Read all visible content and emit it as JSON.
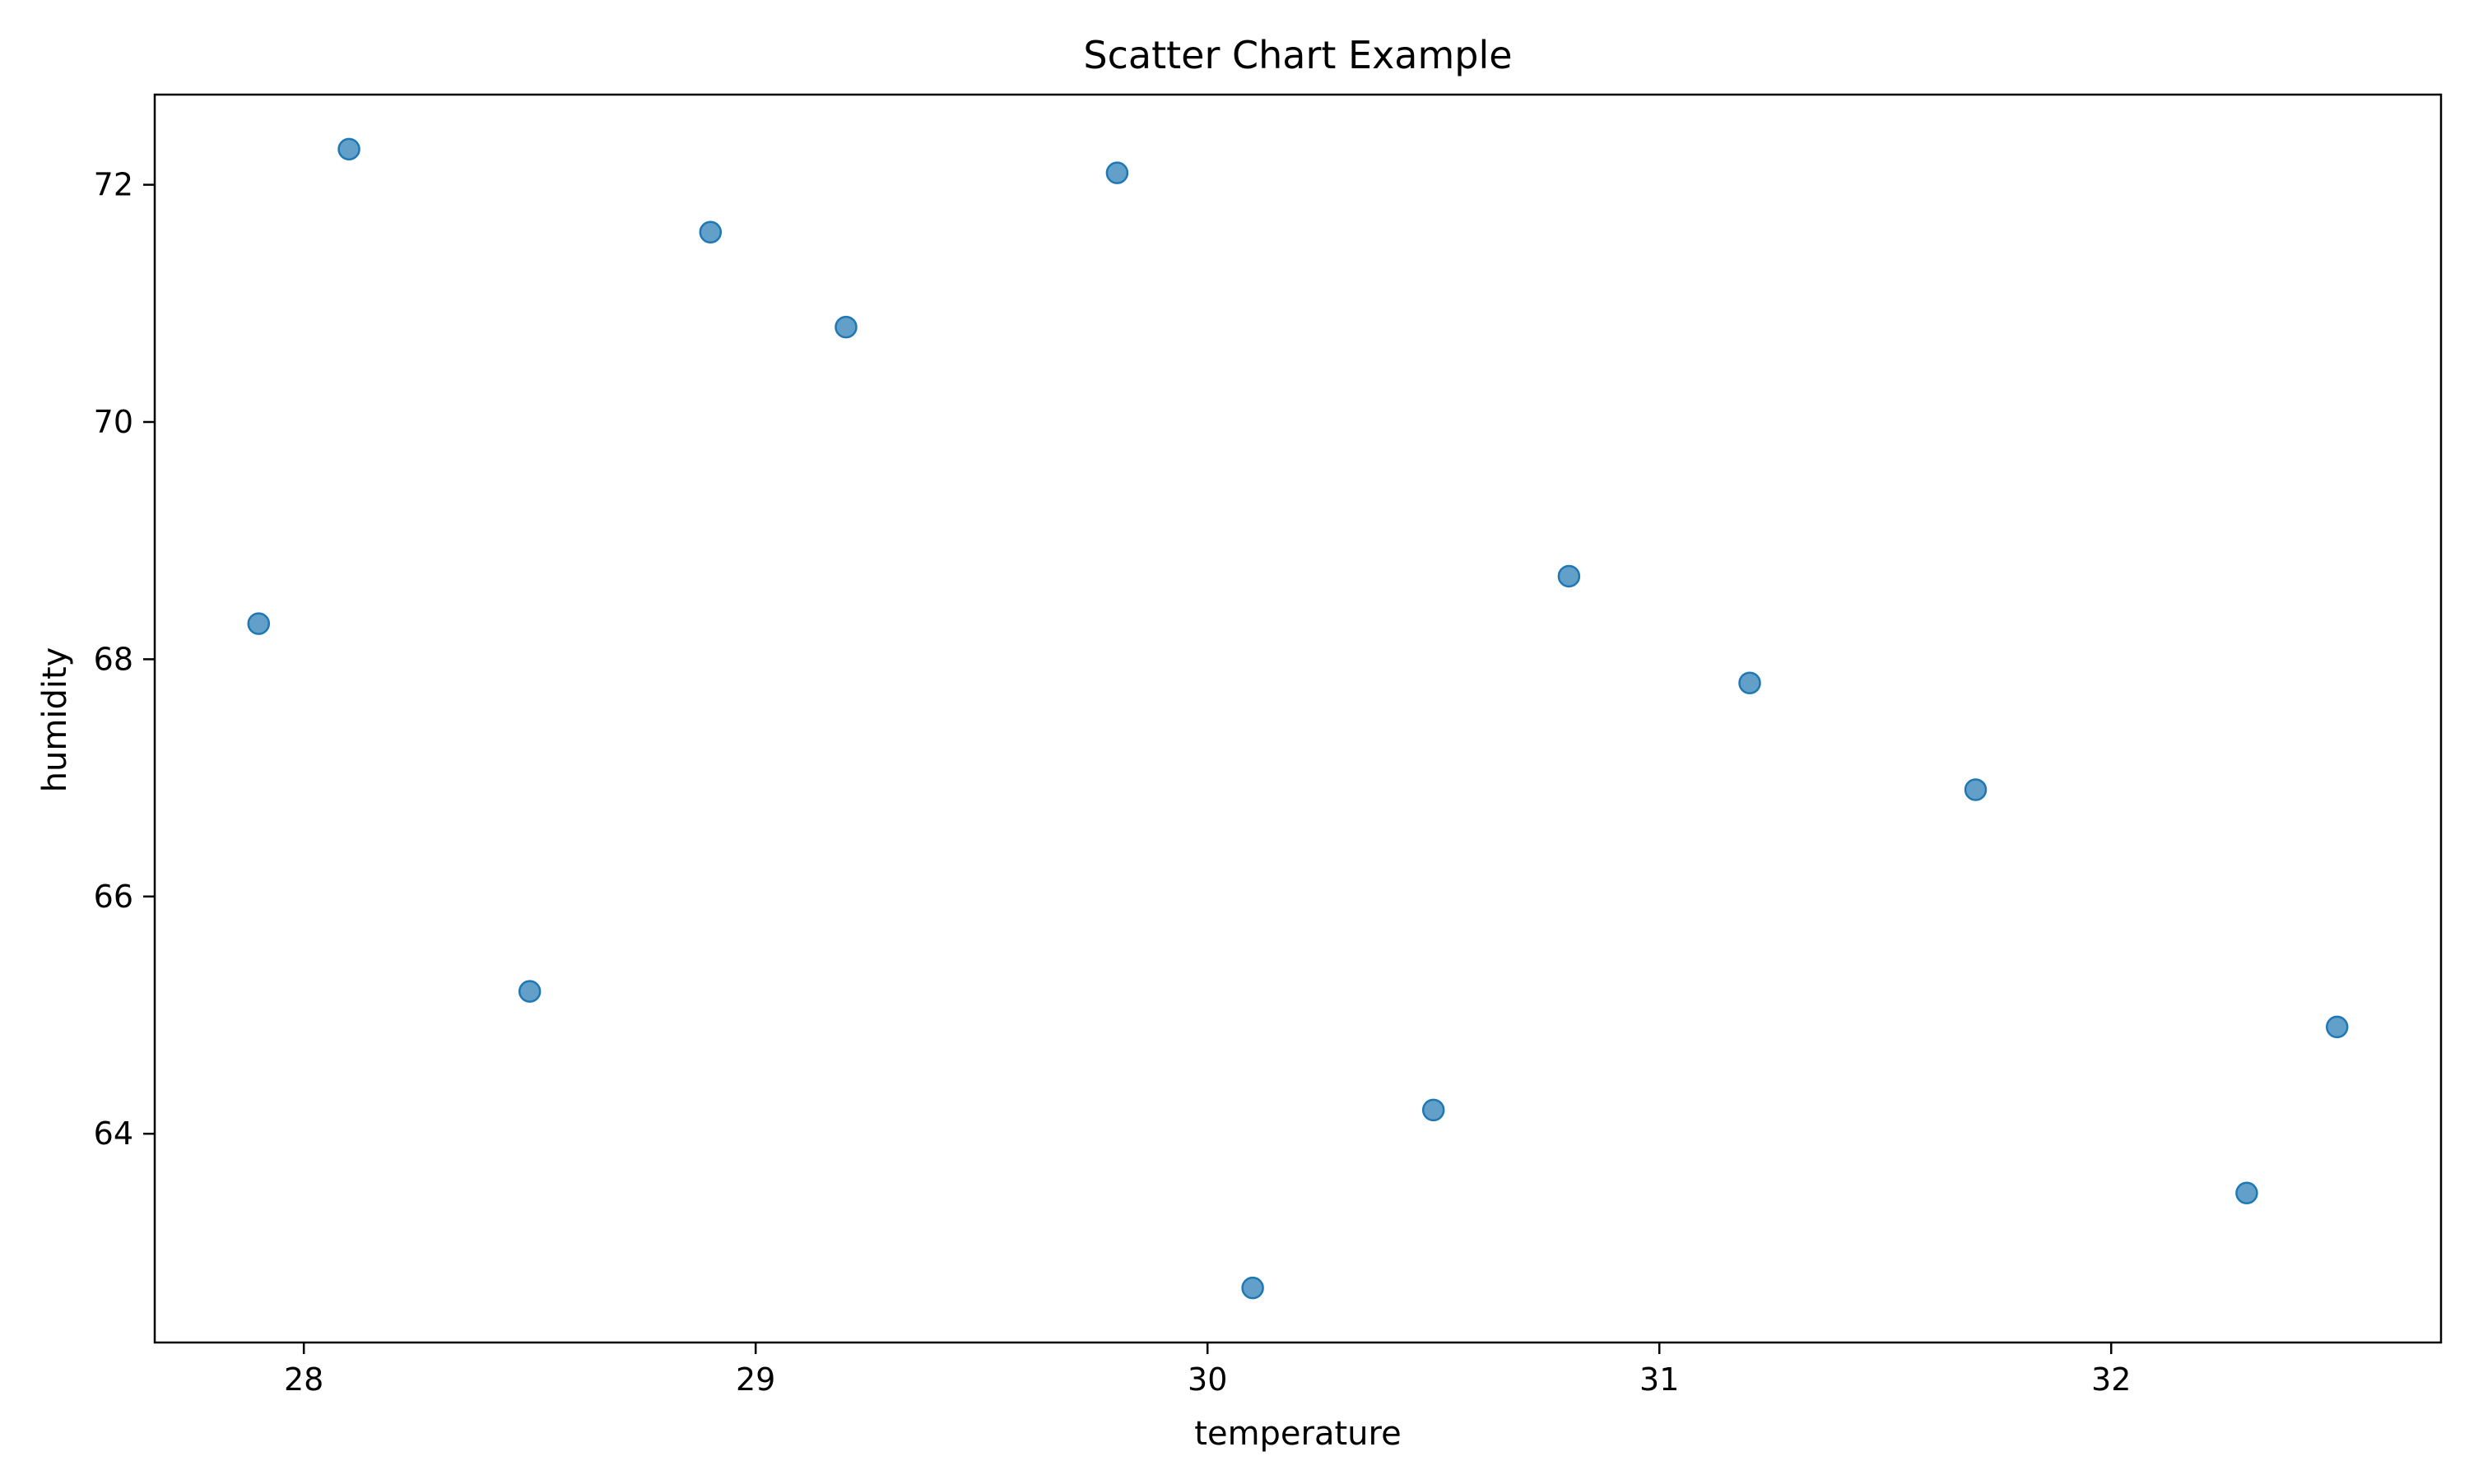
{
  "chart_data": {
    "type": "scatter",
    "title": "Scatter Chart Example",
    "xlabel": "temperature",
    "ylabel": "humidity",
    "xlim": [
      27.67,
      32.73
    ],
    "ylim": [
      62.24,
      72.76
    ],
    "xticks": [
      28,
      29,
      30,
      31,
      32
    ],
    "yticks": [
      64,
      66,
      68,
      70,
      72
    ],
    "grid": false,
    "legend": "none",
    "marker_color": "#1f77b4",
    "points": [
      {
        "x": 27.9,
        "y": 68.3
      },
      {
        "x": 28.1,
        "y": 72.3
      },
      {
        "x": 28.5,
        "y": 65.2
      },
      {
        "x": 28.9,
        "y": 71.6
      },
      {
        "x": 29.2,
        "y": 70.8
      },
      {
        "x": 29.8,
        "y": 72.1
      },
      {
        "x": 30.1,
        "y": 62.7
      },
      {
        "x": 30.5,
        "y": 64.2
      },
      {
        "x": 30.8,
        "y": 68.7
      },
      {
        "x": 31.2,
        "y": 67.8
      },
      {
        "x": 31.7,
        "y": 66.9
      },
      {
        "x": 32.3,
        "y": 63.5
      },
      {
        "x": 32.5,
        "y": 64.9
      }
    ]
  }
}
